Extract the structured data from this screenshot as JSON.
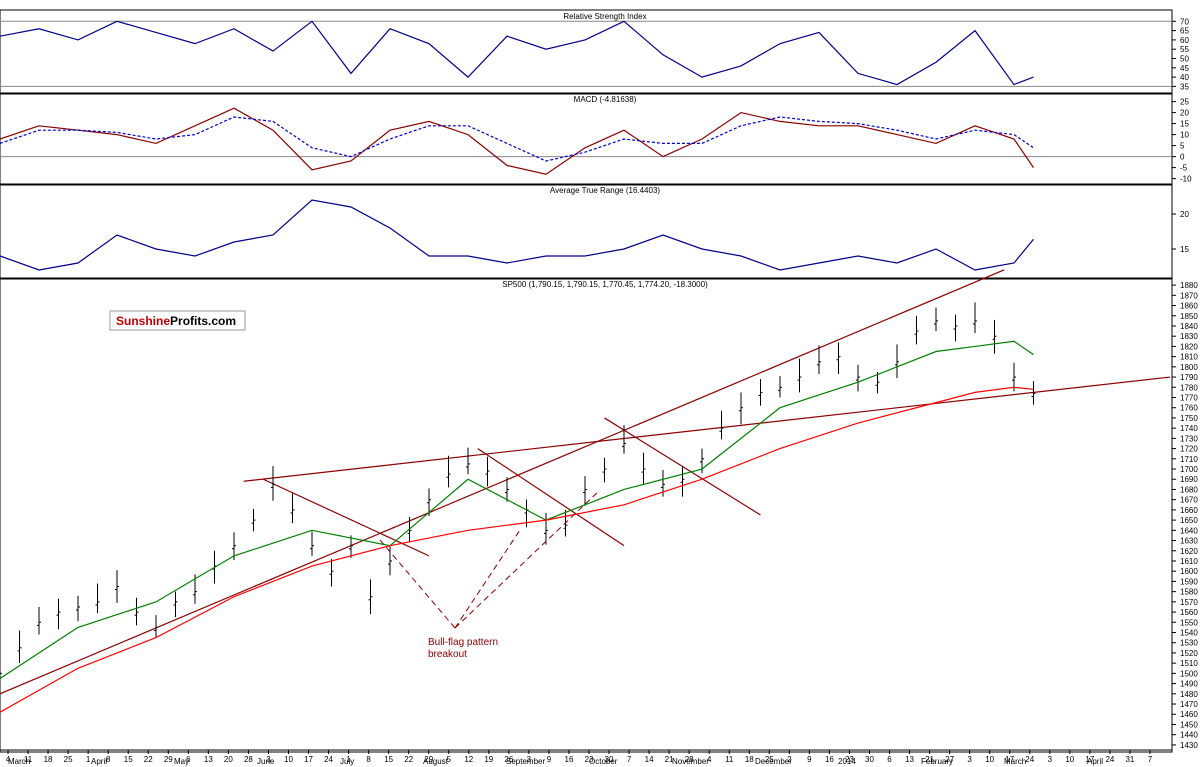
{
  "chart_data": [
    {
      "type": "line",
      "title": "Relative Strength Index",
      "y_axis_ticks": [
        35,
        40,
        45,
        50,
        55,
        60,
        65,
        70
      ],
      "ylim": [
        32,
        75
      ],
      "reference_levels": [
        70,
        35
      ],
      "series": [
        {
          "color": "#00008b",
          "x": [
            0,
            4,
            8,
            12,
            16,
            20,
            24,
            28,
            32,
            36,
            40,
            44,
            48,
            52,
            56,
            60,
            64,
            68,
            72,
            76,
            80,
            84,
            88,
            92,
            96,
            100,
            104,
            106
          ],
          "values": [
            62,
            66,
            60,
            70,
            64,
            58,
            66,
            54,
            70,
            42,
            66,
            58,
            40,
            62,
            55,
            60,
            70,
            52,
            40,
            46,
            58,
            64,
            42,
            36,
            48,
            65,
            36,
            40
          ]
        }
      ]
    },
    {
      "type": "line",
      "title": "MACD (-4.81638)",
      "y_axis_ticks": [
        -10,
        -5,
        0,
        5,
        10,
        15,
        20,
        25
      ],
      "ylim": [
        -12,
        28
      ],
      "series": [
        {
          "color": "#8b0000",
          "line": "solid",
          "x": [
            0,
            4,
            8,
            12,
            16,
            20,
            24,
            28,
            32,
            36,
            40,
            44,
            48,
            52,
            56,
            60,
            64,
            68,
            72,
            76,
            80,
            84,
            88,
            92,
            96,
            100,
            104,
            106
          ],
          "values": [
            8,
            14,
            12,
            10,
            6,
            14,
            22,
            12,
            -6,
            -2,
            12,
            16,
            10,
            -4,
            -8,
            4,
            12,
            0,
            8,
            20,
            16,
            14,
            14,
            10,
            6,
            14,
            8,
            -5
          ]
        },
        {
          "color": "#0000cd",
          "line": "dashed",
          "x": [
            0,
            4,
            8,
            12,
            16,
            20,
            24,
            28,
            32,
            36,
            40,
            44,
            48,
            52,
            56,
            60,
            64,
            68,
            72,
            76,
            80,
            84,
            88,
            92,
            96,
            100,
            104,
            106
          ],
          "values": [
            6,
            12,
            12,
            11,
            8,
            10,
            18,
            16,
            4,
            0,
            8,
            14,
            14,
            6,
            -2,
            2,
            8,
            6,
            6,
            14,
            18,
            16,
            15,
            12,
            8,
            12,
            10,
            4
          ]
        }
      ]
    },
    {
      "type": "line",
      "title": "Average True Range (16.4403)",
      "y_axis_ticks": [
        15,
        20
      ],
      "ylim": [
        11,
        24
      ],
      "series": [
        {
          "color": "#00008b",
          "x": [
            0,
            4,
            8,
            12,
            16,
            20,
            24,
            28,
            32,
            36,
            40,
            44,
            48,
            52,
            56,
            60,
            64,
            68,
            72,
            76,
            80,
            84,
            88,
            92,
            96,
            100,
            104,
            106
          ],
          "values": [
            14,
            12,
            13,
            17,
            15,
            14,
            16,
            17,
            22,
            21,
            18,
            14,
            14,
            13,
            14,
            14,
            15,
            17,
            15,
            14,
            12,
            13,
            14,
            13,
            15,
            12,
            13,
            16.4
          ]
        }
      ]
    },
    {
      "type": "line",
      "title": "SP500 (1,790.15, 1,790.15, 1,770.45, 1,774.20, -18.3000)",
      "watermark": {
        "part1": "Sunshine",
        "part2": "Profits.com"
      },
      "annotation": [
        "Bull-flag pattern",
        "breakout"
      ],
      "y_axis_ticks": [
        1430,
        1440,
        1450,
        1460,
        1470,
        1480,
        1490,
        1500,
        1510,
        1520,
        1530,
        1540,
        1550,
        1560,
        1570,
        1580,
        1590,
        1600,
        1610,
        1620,
        1630,
        1640,
        1650,
        1660,
        1670,
        1680,
        1690,
        1700,
        1710,
        1720,
        1730,
        1740,
        1750,
        1760,
        1770,
        1780,
        1790,
        1800,
        1810,
        1820,
        1830,
        1840,
        1850,
        1860,
        1870,
        1880
      ],
      "ylim": [
        1425,
        1885
      ],
      "price": {
        "x": [
          0,
          2,
          4,
          6,
          8,
          10,
          12,
          14,
          16,
          18,
          20,
          22,
          24,
          26,
          28,
          30,
          32,
          34,
          36,
          38,
          40,
          42,
          44,
          46,
          48,
          50,
          52,
          54,
          56,
          58,
          60,
          62,
          64,
          66,
          68,
          70,
          72,
          74,
          76,
          78,
          80,
          82,
          84,
          86,
          88,
          90,
          92,
          94,
          96,
          98,
          100,
          102,
          104,
          106
        ],
        "values": [
          1500,
          1525,
          1550,
          1560,
          1565,
          1570,
          1585,
          1560,
          1545,
          1570,
          1580,
          1605,
          1625,
          1650,
          1685,
          1660,
          1625,
          1600,
          1625,
          1575,
          1610,
          1640,
          1670,
          1695,
          1705,
          1698,
          1680,
          1660,
          1640,
          1645,
          1680,
          1700,
          1725,
          1700,
          1685,
          1690,
          1710,
          1740,
          1760,
          1775,
          1780,
          1790,
          1805,
          1810,
          1790,
          1785,
          1805,
          1835,
          1845,
          1840,
          1845,
          1830,
          1790,
          1774
        ]
      },
      "series": [
        {
          "color": "#008000",
          "name": "",
          "x": [
            0,
            8,
            16,
            24,
            32,
            40,
            48,
            56,
            60,
            64,
            72,
            80,
            88,
            96,
            100,
            104,
            106
          ],
          "values": [
            1495,
            1545,
            1570,
            1615,
            1640,
            1625,
            1690,
            1650,
            1665,
            1680,
            1700,
            1760,
            1785,
            1815,
            1820,
            1825,
            1812
          ]
        },
        {
          "color": "#ff0000",
          "name": "",
          "x": [
            0,
            8,
            16,
            24,
            32,
            40,
            48,
            56,
            64,
            72,
            80,
            88,
            96,
            100,
            104,
            106
          ],
          "values": [
            1462,
            1505,
            1535,
            1575,
            1605,
            1625,
            1640,
            1650,
            1665,
            1690,
            1720,
            1745,
            1765,
            1775,
            1780,
            1778
          ]
        }
      ],
      "trend_lines": [
        {
          "color": "#8b0000",
          "from": [
            0,
            1480
          ],
          "to": [
            103,
            1895
          ]
        },
        {
          "color": "#8b0000",
          "from": [
            25,
            1688
          ],
          "to": [
            120,
            1790
          ]
        },
        {
          "color": "#8b0000",
          "from": [
            27,
            1690
          ],
          "to": [
            44,
            1615
          ]
        },
        {
          "color": "#8b0000",
          "from": [
            49,
            1720
          ],
          "to": [
            64,
            1625
          ]
        },
        {
          "color": "#8b0000",
          "from": [
            62,
            1750
          ],
          "to": [
            78,
            1655
          ]
        }
      ],
      "x_axis": {
        "day_ticks": [
          "4",
          "11",
          "18",
          "25",
          "1",
          "8",
          "15",
          "22",
          "29",
          "6",
          "13",
          "20",
          "28",
          "3",
          "10",
          "17",
          "24",
          "1",
          "8",
          "15",
          "22",
          "29",
          "5",
          "12",
          "19",
          "26",
          "3",
          "9",
          "16",
          "23",
          "30",
          "7",
          "14",
          "21",
          "28",
          "4",
          "11",
          "18",
          "25",
          "2",
          "9",
          "16",
          "23",
          "30",
          "6",
          "13",
          "21",
          "27",
          "3",
          "10",
          "17",
          "24",
          "3",
          "10",
          "17",
          "24",
          "31",
          "7"
        ],
        "month_ticks": [
          "March",
          "April",
          "May",
          "June",
          "July",
          "August",
          "September",
          "October",
          "November",
          "December",
          "2014",
          "February",
          "March",
          "April"
        ]
      }
    }
  ]
}
